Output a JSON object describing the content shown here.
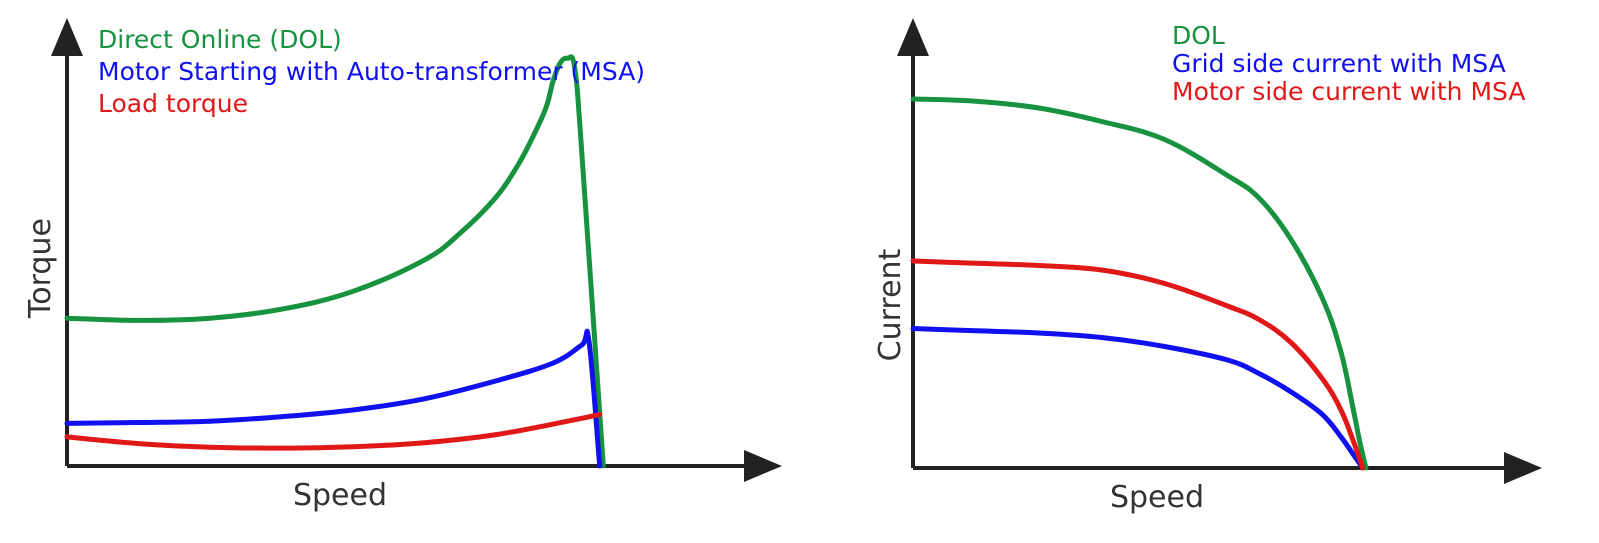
{
  "colors": {
    "green": "#17923f",
    "blue": "#1010f0",
    "red": "#e01818",
    "axis": "#222222"
  },
  "chart_data": [
    {
      "type": "line",
      "xlabel": "Speed",
      "ylabel": "Torque",
      "xlim": [
        0,
        1
      ],
      "ylim": [
        0,
        1
      ],
      "grid": false,
      "legend_position": "top-left",
      "series": [
        {
          "name": "Direct Online (DOL)",
          "color": "#17923f",
          "x": [
            0.0,
            0.1,
            0.2,
            0.3,
            0.4,
            0.5,
            0.55,
            0.6,
            0.63,
            0.65,
            0.67,
            0.68,
            0.69,
            0.7,
            0.71,
            0.72,
            0.75
          ],
          "y": [
            0.33,
            0.325,
            0.33,
            0.35,
            0.39,
            0.46,
            0.52,
            0.6,
            0.67,
            0.73,
            0.8,
            0.86,
            0.9,
            0.91,
            0.89,
            0.7,
            0.0
          ]
        },
        {
          "name": "Motor Starting with Auto-transformer (MSA)",
          "color": "#1010f0",
          "x": [
            0.0,
            0.1,
            0.2,
            0.3,
            0.4,
            0.5,
            0.6,
            0.68,
            0.72,
            0.73,
            0.745
          ],
          "y": [
            0.095,
            0.097,
            0.1,
            0.11,
            0.125,
            0.15,
            0.19,
            0.23,
            0.27,
            0.28,
            0.0
          ]
        },
        {
          "name": "Load torque",
          "color": "#e01818",
          "x": [
            0.0,
            0.1,
            0.2,
            0.3,
            0.4,
            0.5,
            0.6,
            0.7,
            0.745
          ],
          "y": [
            0.065,
            0.05,
            0.042,
            0.04,
            0.043,
            0.052,
            0.07,
            0.1,
            0.115
          ]
        }
      ]
    },
    {
      "type": "line",
      "xlabel": "Speed",
      "ylabel": "Current",
      "xlim": [
        0,
        1
      ],
      "ylim": [
        0,
        1
      ],
      "grid": false,
      "legend_position": "top-right",
      "series": [
        {
          "name": "DOL",
          "color": "#17923f",
          "x": [
            0.0,
            0.1,
            0.2,
            0.3,
            0.4,
            0.5,
            0.55,
            0.6,
            0.65,
            0.68,
            0.7,
            0.71,
            0.72
          ],
          "y": [
            0.82,
            0.815,
            0.8,
            0.77,
            0.73,
            0.65,
            0.6,
            0.51,
            0.38,
            0.26,
            0.13,
            0.06,
            0.0
          ]
        },
        {
          "name": "Grid side current with MSA",
          "color": "#1010f0",
          "x": [
            0.0,
            0.1,
            0.2,
            0.3,
            0.4,
            0.5,
            0.55,
            0.6,
            0.65,
            0.68,
            0.7,
            0.715
          ],
          "y": [
            0.31,
            0.305,
            0.3,
            0.29,
            0.27,
            0.24,
            0.21,
            0.17,
            0.12,
            0.07,
            0.03,
            0.0
          ]
        },
        {
          "name": "Motor side current with MSA",
          "color": "#e01818",
          "x": [
            0.0,
            0.1,
            0.2,
            0.3,
            0.4,
            0.5,
            0.55,
            0.6,
            0.65,
            0.68,
            0.7,
            0.715
          ],
          "y": [
            0.46,
            0.455,
            0.45,
            0.44,
            0.41,
            0.36,
            0.33,
            0.28,
            0.2,
            0.13,
            0.06,
            0.0
          ]
        }
      ]
    }
  ]
}
